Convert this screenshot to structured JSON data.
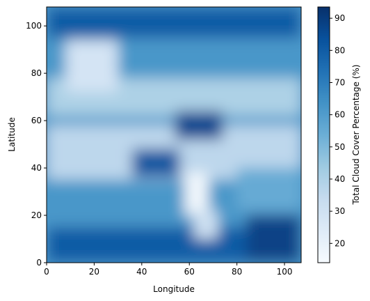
{
  "chart_data": {
    "type": "heatmap",
    "title": "",
    "xlabel": "Longitude",
    "ylabel": "Latitude",
    "xlim": [
      0,
      107
    ],
    "ylim": [
      0,
      108
    ],
    "x_ticks": [
      0,
      20,
      40,
      60,
      80,
      100
    ],
    "y_ticks": [
      0,
      20,
      40,
      60,
      80,
      100
    ],
    "colorbar": {
      "label": "Total Cloud Cover Percentage (%)",
      "range": [
        14,
        93.5
      ],
      "ticks": [
        20,
        30,
        40,
        50,
        60,
        70,
        80,
        90
      ],
      "colormap": "Blues",
      "stops": [
        "#f7fbff",
        "#deebf7",
        "#c6dbef",
        "#9ecae1",
        "#6baed6",
        "#4292c6",
        "#2171b5",
        "#08519c",
        "#08306b"
      ]
    },
    "grid": false,
    "legend": "none",
    "regions": [
      {
        "lon": [
          0,
          107
        ],
        "lat": [
          0,
          108
        ],
        "value": 62
      },
      {
        "lon": [
          0,
          107
        ],
        "lat": [
          62,
          78
        ],
        "value": 40
      },
      {
        "lon": [
          0,
          107
        ],
        "lat": [
          35,
          58
        ],
        "value": 36
      },
      {
        "lon": [
          0,
          107
        ],
        "lat": [
          0,
          15
        ],
        "value": 80
      },
      {
        "lon": [
          0,
          107
        ],
        "lat": [
          95,
          108
        ],
        "value": 80
      },
      {
        "lon": [
          8,
          30
        ],
        "lat": [
          72,
          94
        ],
        "value": 28
      },
      {
        "lon": [
          36,
          56
        ],
        "lat": [
          36,
          48
        ],
        "value": 82
      },
      {
        "lon": [
          54,
          74
        ],
        "lat": [
          52,
          64
        ],
        "value": 86
      },
      {
        "lon": [
          58,
          68
        ],
        "lat": [
          20,
          38
        ],
        "value": 16
      },
      {
        "lon": [
          62,
          72
        ],
        "lat": [
          10,
          22
        ],
        "value": 30
      },
      {
        "lon": [
          80,
          107
        ],
        "lat": [
          22,
          40
        ],
        "value": 55
      },
      {
        "lon": [
          84,
          107
        ],
        "lat": [
          0,
          20
        ],
        "value": 88
      }
    ]
  }
}
